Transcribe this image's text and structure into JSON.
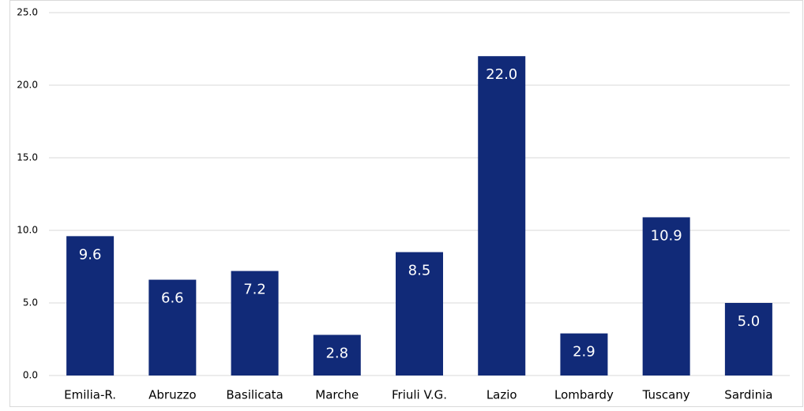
{
  "chart_data": {
    "type": "bar",
    "categories": [
      "Emilia-R.",
      "Abruzzo",
      "Basilicata",
      "Marche",
      "Friuli V.G.",
      "Lazio",
      "Lombardy",
      "Tuscany",
      "Sardinia"
    ],
    "values": [
      9.6,
      6.6,
      7.2,
      2.8,
      8.5,
      22.0,
      2.9,
      10.9,
      5.0
    ],
    "value_labels": [
      "9.6",
      "6.6",
      "7.2",
      "2.8",
      "8.5",
      "22.0",
      "2.9",
      "10.9",
      "5.0"
    ],
    "color": "#112a78",
    "ylim": [
      0,
      25
    ],
    "yticks": [
      {
        "value": 0,
        "label": "0.0"
      },
      {
        "value": 5,
        "label": "5.0"
      },
      {
        "value": 10,
        "label": "10.0"
      },
      {
        "value": 15,
        "label": "15.0"
      },
      {
        "value": 20,
        "label": "20.0"
      },
      {
        "value": 25,
        "label": "25.0"
      }
    ],
    "grid": true
  }
}
